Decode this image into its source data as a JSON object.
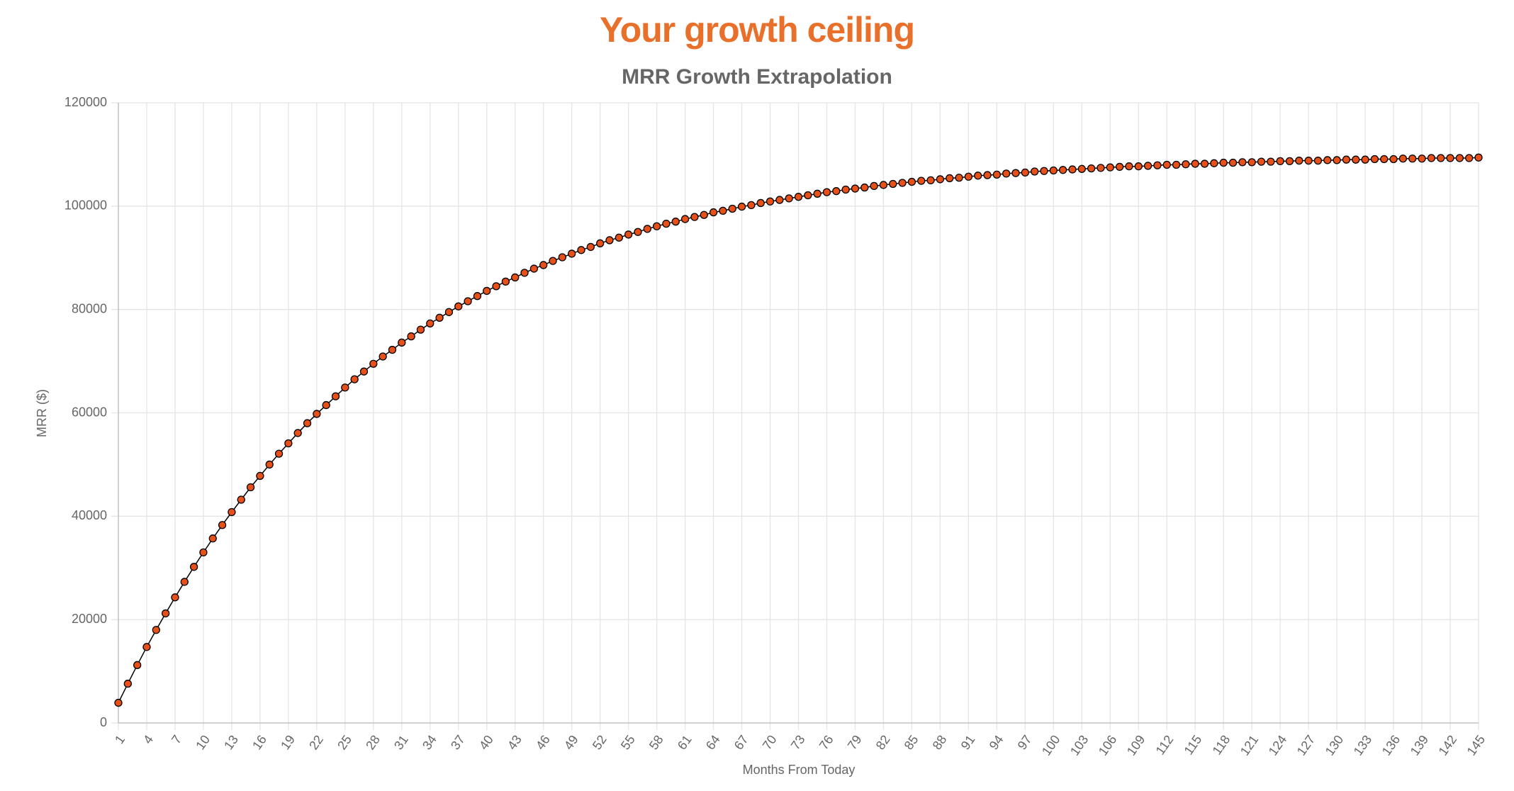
{
  "chart_data": {
    "type": "line",
    "title": "Your growth ceiling",
    "subtitle": "MRR Growth Extrapolation",
    "x_label": "Months From Today",
    "y_label": "MRR ($)",
    "x": [
      1,
      2,
      3,
      4,
      5,
      6,
      7,
      8,
      9,
      10,
      11,
      12,
      13,
      14,
      15,
      16,
      17,
      18,
      19,
      20,
      21,
      22,
      23,
      24,
      25,
      26,
      27,
      28,
      29,
      30,
      31,
      32,
      33,
      34,
      35,
      36,
      37,
      38,
      39,
      40,
      41,
      42,
      43,
      44,
      45,
      46,
      47,
      48,
      49,
      50,
      51,
      52,
      53,
      54,
      55,
      56,
      57,
      58,
      59,
      60,
      61,
      62,
      63,
      64,
      65,
      66,
      67,
      68,
      69,
      70,
      71,
      72,
      73,
      74,
      75,
      76,
      77,
      78,
      79,
      80,
      81,
      82,
      83,
      84,
      85,
      86,
      87,
      88,
      89,
      90,
      91,
      92,
      93,
      94,
      95,
      96,
      97,
      98,
      99,
      100,
      101,
      102,
      103,
      104,
      105,
      106,
      107,
      108,
      109,
      110,
      111,
      112,
      113,
      114,
      115,
      116,
      117,
      118,
      119,
      120,
      121,
      122,
      123,
      124,
      125,
      126,
      127,
      128,
      129,
      130,
      131,
      132,
      133,
      134,
      135,
      136,
      137,
      138,
      139,
      140,
      141,
      142,
      143,
      144,
      145
    ],
    "values": [
      3900,
      7600,
      11200,
      14700,
      18000,
      21200,
      24300,
      27300,
      30200,
      33000,
      35700,
      38300,
      40800,
      43200,
      45600,
      47800,
      50000,
      52100,
      54100,
      56100,
      58000,
      59800,
      61500,
      63200,
      64900,
      66500,
      68000,
      69500,
      70900,
      72200,
      73600,
      74800,
      76100,
      77300,
      78400,
      79500,
      80600,
      81600,
      82600,
      83600,
      84500,
      85400,
      86200,
      87100,
      87900,
      88600,
      89400,
      90100,
      90800,
      91500,
      92100,
      92800,
      93400,
      93900,
      94500,
      95000,
      95600,
      96100,
      96600,
      97000,
      97500,
      97900,
      98300,
      98800,
      99100,
      99500,
      99900,
      100200,
      100600,
      100900,
      101200,
      101500,
      101800,
      102100,
      102400,
      102700,
      102900,
      103200,
      103400,
      103600,
      103900,
      104100,
      104300,
      104500,
      104700,
      104900,
      105000,
      105200,
      105400,
      105500,
      105700,
      105900,
      106000,
      106100,
      106300,
      106400,
      106500,
      106700,
      106800,
      106900,
      107000,
      107100,
      107200,
      107300,
      107400,
      107500,
      107600,
      107700,
      107700,
      107800,
      107900,
      108000,
      108000,
      108100,
      108200,
      108200,
      108300,
      108400,
      108400,
      108500,
      108500,
      108600,
      108600,
      108700,
      108700,
      108800,
      108800,
      108800,
      108900,
      108900,
      109000,
      109000,
      109000,
      109100,
      109100,
      109100,
      109200,
      109200,
      109200,
      109300,
      109300,
      109300,
      109300,
      109300,
      109400
    ],
    "color": "#e8501a",
    "line_color": "#000000",
    "xlim": [
      1,
      145
    ],
    "xticks": [
      1,
      4,
      7,
      10,
      13,
      16,
      19,
      22,
      25,
      28,
      31,
      34,
      37,
      40,
      43,
      46,
      49,
      52,
      55,
      58,
      61,
      64,
      67,
      70,
      73,
      76,
      79,
      82,
      85,
      88,
      91,
      94,
      97,
      100,
      103,
      106,
      109,
      112,
      115,
      118,
      121,
      124,
      127,
      130,
      133,
      136,
      139,
      142,
      145
    ],
    "ylim": [
      0,
      120000
    ],
    "yticks": [
      0,
      20000,
      40000,
      60000,
      80000,
      100000,
      120000
    ],
    "grid": true
  }
}
